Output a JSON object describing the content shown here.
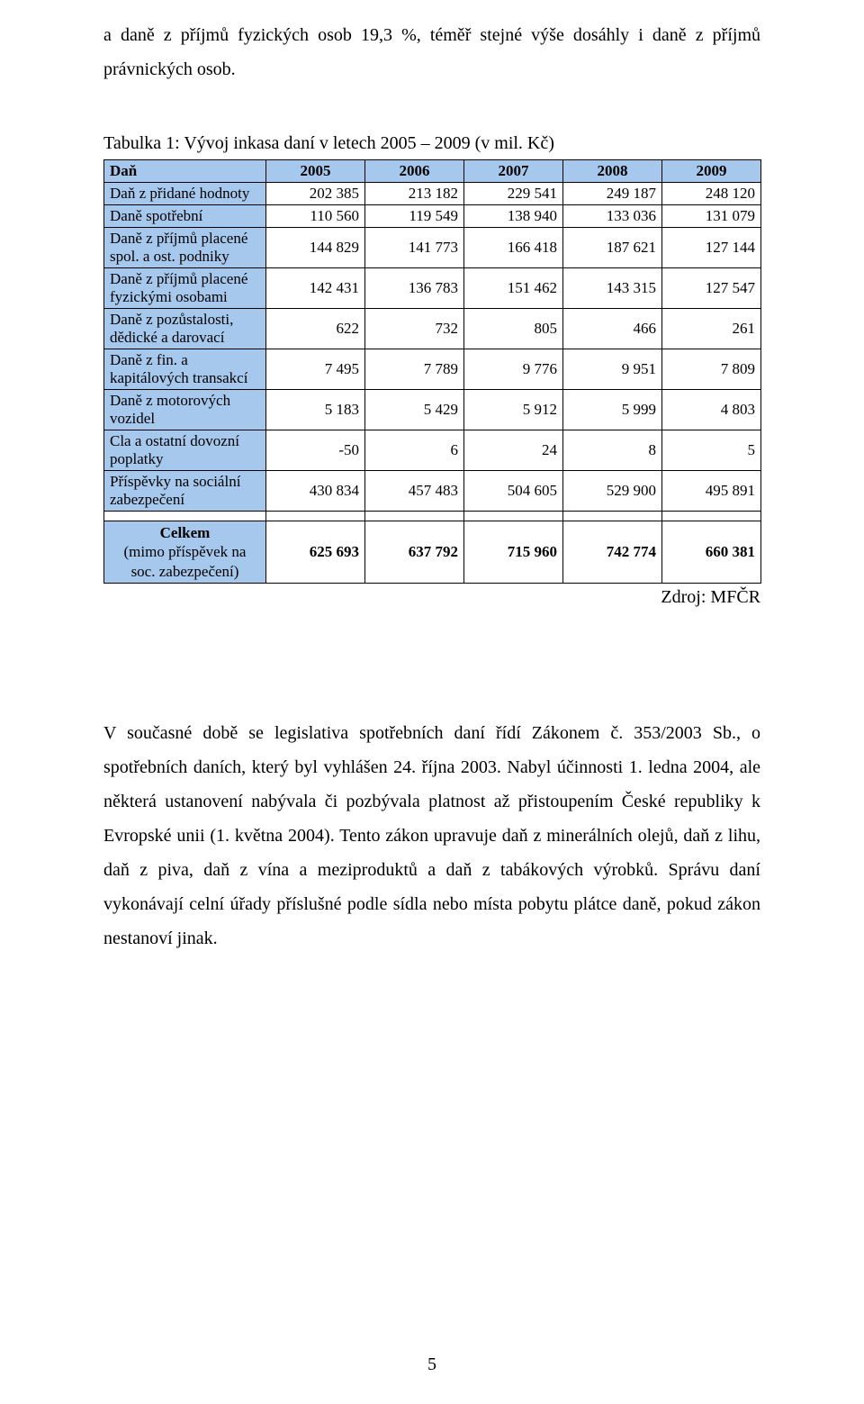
{
  "intro": "a daně z příjmů fyzických osob 19,3 %, téměř stejné výše dosáhly i daně z příjmů právnických osob.",
  "caption": "Tabulka 1: Vývoj inkasa daní v letech 2005 – 2009 (v mil. Kč)",
  "table": {
    "header_label": "Daň",
    "years": [
      "2005",
      "2006",
      "2007",
      "2008",
      "2009"
    ],
    "rows": [
      {
        "label": "Daň z přidané hodnoty",
        "vals": [
          "202 385",
          "213 182",
          "229 541",
          "249 187",
          "248 120"
        ]
      },
      {
        "label": "Daně spotřební",
        "vals": [
          "110 560",
          "119 549",
          "138 940",
          "133 036",
          "131 079"
        ]
      },
      {
        "label": "Daně z příjmů placené spol. a ost. podniky",
        "vals": [
          "144 829",
          "141 773",
          "166 418",
          "187 621",
          "127 144"
        ]
      },
      {
        "label": "Daně z příjmů placené fyzickými osobami",
        "vals": [
          "142 431",
          "136 783",
          "151 462",
          "143 315",
          "127 547"
        ]
      },
      {
        "label": "Daně z pozůstalosti, dědické a darovací",
        "vals": [
          "622",
          "732",
          "805",
          "466",
          "261"
        ]
      },
      {
        "label": "Daně z fin. a kapitálových transakcí",
        "vals": [
          "7 495",
          "7 789",
          "9 776",
          "9 951",
          "7 809"
        ]
      },
      {
        "label": "Daně z motorových vozidel",
        "vals": [
          "5 183",
          "5 429",
          "5 912",
          "5 999",
          "4 803"
        ]
      },
      {
        "label": "Cla a ostatní dovozní poplatky",
        "vals": [
          "-50",
          "6",
          "24",
          "8",
          "5"
        ]
      },
      {
        "label": "Příspěvky na sociální zabezpečení",
        "vals": [
          "430 834",
          "457 483",
          "504 605",
          "529 900",
          "495 891"
        ]
      }
    ],
    "total": {
      "label_bold": "Celkem",
      "label_plain": "(mimo příspěvek na soc. zabezpečení)",
      "vals": [
        "625 693",
        "637 792",
        "715 960",
        "742 774",
        "660 381"
      ]
    }
  },
  "source": "Zdroj: MFČR",
  "body2": "V současné době se legislativa spotřebních daní řídí Zákonem č. 353/2003 Sb., o spotřebních daních, který byl vyhlášen 24. října 2003. Nabyl účinnosti 1. ledna 2004, ale některá ustanovení nabývala či pozbývala platnost až přistoupením České republiky k Evropské unii (1. května 2004). Tento zákon upravuje daň z minerálních olejů, daň  z lihu, daň z piva, daň z vína a meziproduktů a daň z tabákových výrobků. Správu daní vykonávají celní úřady příslušné podle sídla nebo místa pobytu plátce daně, pokud zákon nestanoví jinak.",
  "pagenum": "5",
  "colors": {
    "header_bg": "#a7c8ed",
    "border": "#000000",
    "text": "#000000",
    "page_bg": "#ffffff"
  },
  "fontsize": {
    "body": 20,
    "table": 17
  }
}
